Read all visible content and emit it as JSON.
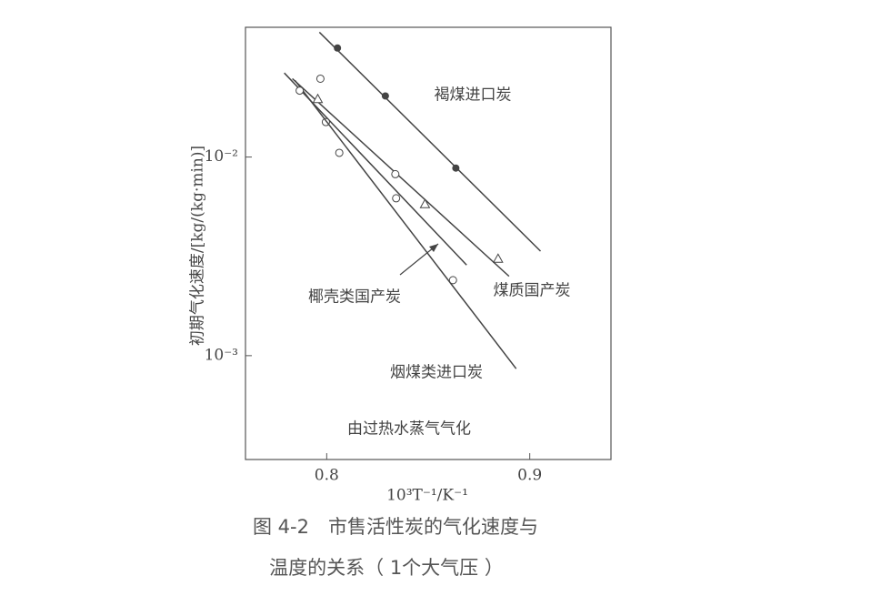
{
  "chart_data": {
    "type": "scatter",
    "xlabel": "10³T⁻¹/K⁻¹",
    "ylabel": "初期气化速度/[kg/(kg·min)]",
    "annotation": "由过热水蒸气气化",
    "caption": [
      "图 4-2　市售活性炭的气化速度与",
      "温度的关系（ 1个大气压 ）"
    ],
    "xlim": [
      0.76,
      0.94
    ],
    "ylim": [
      0.0003,
      0.045
    ],
    "log_y": true,
    "xticks": [
      0.8,
      0.9
    ],
    "yticks": [
      {
        "value": 0.01,
        "label": "10⁻²"
      },
      {
        "value": 0.001,
        "label": "10⁻³"
      }
    ],
    "color": "#444444",
    "series": [
      {
        "name": "褐煤进口炭",
        "marker": "filled-circle",
        "x": [
          0.8053,
          0.8289,
          0.8636
        ],
        "values": [
          0.0354,
          0.0203,
          0.0088
        ],
        "fit": {
          "x": [
            0.7964,
            0.9053
          ],
          "values": [
            0.0425,
            0.00336
          ]
        }
      },
      {
        "name": "煤质国产炭",
        "marker": "open-triangle",
        "x": [
          0.7956,
          0.8484,
          0.8844
        ],
        "values": [
          0.0196,
          0.0058,
          0.00308
        ],
        "fit": {
          "x": [
            0.7831,
            0.8898
          ],
          "values": [
            0.0248,
            0.00251
          ]
        }
      },
      {
        "name": "椰壳类国产炭",
        "marker": "open-circle",
        "x": [
          0.7969,
          0.7996,
          0.8338
        ],
        "values": [
          0.0248,
          0.015,
          0.0082
        ],
        "fit": {
          "x": [
            0.7791,
            0.8689
          ],
          "values": [
            0.0265,
            0.00286
          ]
        }
      },
      {
        "name": "烟煤类进口炭",
        "marker": "open-circle",
        "x": [
          0.7867,
          0.8062,
          0.8342,
          0.8622
        ],
        "values": [
          0.0216,
          0.0105,
          0.0062,
          0.0024
        ],
        "fit": {
          "x": [
            0.7844,
            0.8933
          ],
          "values": [
            0.0243,
            0.00086
          ]
        }
      }
    ]
  }
}
